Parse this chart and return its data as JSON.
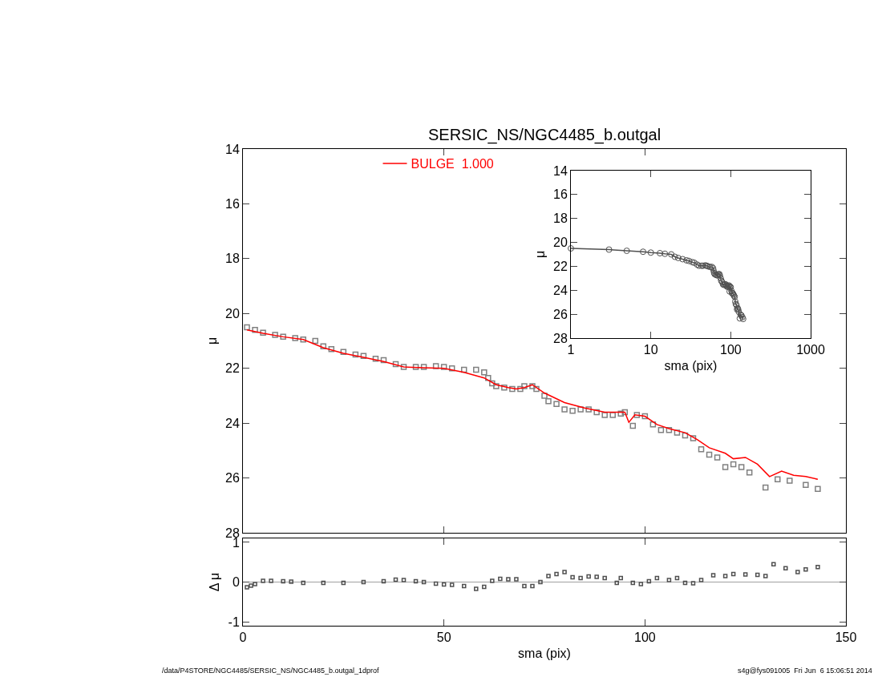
{
  "chart_data": [
    {
      "type": "scatter",
      "title": "SERSIC_NS/NGC4485_b.outgal",
      "ylabel": "μ",
      "xlim": [
        0,
        150
      ],
      "xticks": [
        0,
        50,
        100,
        150
      ],
      "ylim": [
        28,
        14
      ],
      "yticks": [
        14,
        16,
        18,
        20,
        22,
        24,
        26,
        28
      ],
      "tick_labels": "y",
      "legend": "top",
      "grid": false,
      "series": [
        {
          "marker": "square",
          "color": "#808080",
          "x": [
            1,
            3,
            5,
            8,
            10,
            13,
            15,
            18,
            20,
            22,
            25,
            28,
            30,
            33,
            35,
            38,
            40,
            43,
            45,
            48,
            50,
            52,
            55,
            58,
            60,
            61,
            62,
            63,
            65,
            67,
            69,
            70,
            72,
            73,
            75,
            76,
            78,
            80,
            82,
            84,
            86,
            88,
            90,
            92,
            94,
            95,
            97,
            98,
            100,
            102,
            104,
            106,
            108,
            110,
            112,
            114,
            116,
            118,
            120,
            122,
            124,
            126,
            130,
            133,
            136,
            140,
            143
          ],
          "values": [
            20.5,
            20.6,
            20.7,
            20.78,
            20.85,
            20.9,
            20.95,
            21.0,
            21.2,
            21.3,
            21.4,
            21.5,
            21.55,
            21.65,
            21.7,
            21.85,
            21.95,
            21.95,
            21.95,
            21.92,
            21.95,
            22.0,
            22.05,
            22.05,
            22.15,
            22.35,
            22.55,
            22.65,
            22.7,
            22.75,
            22.75,
            22.65,
            22.65,
            22.75,
            23.0,
            23.2,
            23.3,
            23.5,
            23.55,
            23.5,
            23.5,
            23.6,
            23.7,
            23.7,
            23.65,
            23.6,
            24.1,
            23.7,
            23.75,
            24.05,
            24.25,
            24.25,
            24.35,
            24.45,
            24.55,
            24.95,
            25.15,
            25.25,
            25.6,
            25.5,
            25.6,
            25.8,
            26.35,
            26.05,
            26.1,
            26.25,
            26.4
          ]
        },
        {
          "type": "line",
          "marker": "none",
          "name": "BULGE  1.000",
          "color": "#ff0000",
          "x": [
            1,
            5,
            10,
            15,
            20,
            25,
            30,
            35,
            40,
            45,
            50,
            55,
            60,
            63,
            66,
            68,
            70,
            72,
            75,
            80,
            85,
            90,
            94,
            95,
            96,
            97.5,
            100,
            103,
            106,
            110,
            113,
            116,
            120,
            122,
            125,
            128,
            131,
            134,
            137,
            140,
            143
          ],
          "values": [
            20.6,
            20.72,
            20.85,
            20.95,
            21.25,
            21.45,
            21.6,
            21.75,
            21.95,
            21.98,
            22.0,
            22.15,
            22.35,
            22.6,
            22.7,
            22.75,
            22.7,
            22.6,
            22.9,
            23.25,
            23.45,
            23.6,
            23.6,
            23.6,
            23.97,
            23.7,
            23.75,
            24.05,
            24.2,
            24.35,
            24.6,
            24.9,
            25.1,
            25.3,
            25.25,
            25.5,
            25.95,
            25.75,
            25.9,
            25.95,
            26.05
          ]
        }
      ]
    },
    {
      "type": "line",
      "xlabel": "sma (pix)",
      "ylabel": "μ",
      "log": "x",
      "xlim": [
        1,
        1000
      ],
      "xticks": [
        1,
        10,
        100,
        1000
      ],
      "ylim": [
        28,
        14
      ],
      "yticks": [
        14,
        16,
        18,
        20,
        22,
        24,
        26,
        28
      ],
      "marker": "circle",
      "grid": false,
      "series": [
        {
          "color": "#505050",
          "x": [
            1,
            3,
            5,
            8,
            10,
            13,
            15,
            18,
            20,
            22,
            25,
            28,
            30,
            33,
            35,
            38,
            40,
            43,
            45,
            48,
            50,
            52,
            55,
            58,
            60,
            61,
            62,
            63,
            65,
            67,
            69,
            70,
            72,
            73,
            75,
            76,
            78,
            80,
            82,
            84,
            86,
            88,
            90,
            92,
            94,
            95,
            97,
            98,
            100,
            102,
            104,
            106,
            108,
            110,
            112,
            114,
            116,
            118,
            120,
            122,
            124,
            126,
            130,
            133,
            136,
            140,
            143
          ],
          "values": [
            20.5,
            20.6,
            20.7,
            20.78,
            20.85,
            20.9,
            20.95,
            21.0,
            21.2,
            21.3,
            21.4,
            21.5,
            21.55,
            21.65,
            21.7,
            21.85,
            21.95,
            21.95,
            21.95,
            21.92,
            21.95,
            22.0,
            22.05,
            22.05,
            22.15,
            22.35,
            22.55,
            22.65,
            22.7,
            22.75,
            22.75,
            22.65,
            22.65,
            22.75,
            23.0,
            23.2,
            23.3,
            23.5,
            23.55,
            23.5,
            23.5,
            23.6,
            23.7,
            23.7,
            23.65,
            23.6,
            24.1,
            23.7,
            23.75,
            24.05,
            24.25,
            24.25,
            24.35,
            24.45,
            24.55,
            24.95,
            25.15,
            25.25,
            25.6,
            25.5,
            25.6,
            25.8,
            26.35,
            26.05,
            26.1,
            26.25,
            26.4
          ]
        }
      ]
    },
    {
      "type": "scatter",
      "xlabel": "sma (pix)",
      "ylabel": "Δ μ",
      "xlim": [
        0,
        150
      ],
      "xticks": [
        0,
        50,
        100,
        150
      ],
      "ylim": [
        -1.1,
        1.1
      ],
      "yticks": [
        -1,
        0,
        1
      ],
      "marker": "square",
      "grid": false,
      "ref_lines": [
        {
          "axis": "y",
          "value": 0,
          "color": "#a0a0a0"
        }
      ],
      "annotations": [
        "/data/P4STORE/NGC4485/SERSIC_NS/NGC4485_b.outgal_1dprof",
        "s4g@fys091005  Fri Jun  6 15:06:51 2014"
      ],
      "series": [
        {
          "color": "#505050",
          "x": [
            1,
            2,
            3,
            5,
            7,
            10,
            12,
            15,
            20,
            25,
            30,
            35,
            38,
            40,
            43,
            45,
            48,
            50,
            52,
            55,
            58,
            60,
            62,
            64,
            66,
            68,
            70,
            72,
            74,
            76,
            78,
            80,
            82,
            84,
            86,
            88,
            90,
            93,
            94,
            97,
            99,
            101,
            103,
            106,
            108,
            110,
            112,
            114,
            117,
            120,
            122,
            125,
            128,
            130,
            132,
            135,
            138,
            140,
            143
          ],
          "values": [
            -0.13,
            -0.09,
            -0.05,
            0.03,
            0.03,
            0.02,
            0.01,
            -0.02,
            -0.02,
            -0.02,
            0.0,
            0.02,
            0.06,
            0.05,
            0.02,
            0.0,
            -0.04,
            -0.06,
            -0.07,
            -0.1,
            -0.17,
            -0.12,
            0.03,
            0.08,
            0.07,
            0.07,
            -0.1,
            -0.1,
            0.0,
            0.15,
            0.2,
            0.25,
            0.12,
            0.1,
            0.14,
            0.13,
            0.1,
            -0.02,
            0.1,
            -0.02,
            -0.05,
            0.02,
            0.1,
            0.05,
            0.1,
            -0.02,
            -0.03,
            0.05,
            0.17,
            0.15,
            0.2,
            0.19,
            0.18,
            0.15,
            0.45,
            0.35,
            0.25,
            0.32,
            0.38
          ]
        }
      ]
    }
  ]
}
